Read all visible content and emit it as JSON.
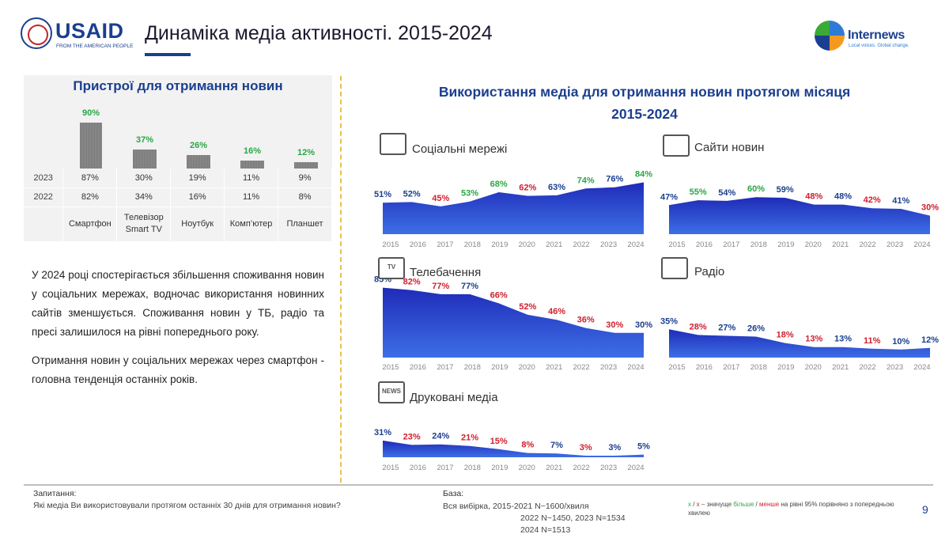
{
  "header": {
    "usaid_name": "USAID",
    "usaid_sub": "FROM THE AMERICAN PEOPLE",
    "page_title": "Динаміка медіа активності. 2015-2024",
    "internews_name": "Internews",
    "internews_tag": "Local voices. Global change."
  },
  "devices": {
    "title": "Пристрої для отримання новин",
    "names": [
      "Смартфон",
      "Телевізор Smart TV",
      "Ноутбук",
      "Комп’ютер",
      "Планшет"
    ],
    "values_2024": [
      90,
      37,
      26,
      16,
      12
    ],
    "labels_2024": [
      "90%",
      "37%",
      "26%",
      "16%",
      "12%"
    ],
    "rows": [
      {
        "year": "2023",
        "values": [
          "87%",
          "30%",
          "19%",
          "11%",
          "9%"
        ]
      },
      {
        "year": "2022",
        "values": [
          "82%",
          "34%",
          "16%",
          "11%",
          "8%"
        ]
      }
    ]
  },
  "body_text": {
    "p1": "У 2024 році спостерігається збільшення споживання новин у соціальних мережах, водночас використання новинних сайтів зменшується. Споживання новин у ТБ, радіо та пресі залишилося на рівні попереднього року.",
    "p2": "Отримання новин у соціальних мережах через смартфон - головна тенденція останніх років."
  },
  "right_title": {
    "line1": "Використання медіа для отримання новин протягом місяця",
    "line2": "2015-2024"
  },
  "chart_data": [
    {
      "type": "area",
      "title": "Соціальні мережі",
      "icon": "social-media-icon",
      "x": [
        "2015",
        "2016",
        "2017",
        "2018",
        "2019",
        "2020",
        "2021",
        "2022",
        "2023",
        "2024"
      ],
      "values": [
        51,
        52,
        45,
        53,
        68,
        62,
        63,
        74,
        76,
        84
      ],
      "label_colors": [
        "#1b3f8f",
        "#1b3f8f",
        "#d0202f",
        "#2aa646",
        "#2aa646",
        "#d0202f",
        "#1b3f8f",
        "#2aa646",
        "#1b3f8f",
        "#2aa646"
      ]
    },
    {
      "type": "area",
      "title": "Сайти новин",
      "icon": "news-site-icon",
      "x": [
        "2015",
        "2016",
        "2017",
        "2018",
        "2019",
        "2020",
        "2021",
        "2022",
        "2023",
        "2024"
      ],
      "values": [
        47,
        55,
        54,
        60,
        59,
        48,
        48,
        42,
        41,
        30
      ],
      "label_colors": [
        "#1b3f8f",
        "#2aa646",
        "#1b3f8f",
        "#2aa646",
        "#1b3f8f",
        "#d0202f",
        "#1b3f8f",
        "#d0202f",
        "#1b3f8f",
        "#d0202f"
      ]
    },
    {
      "type": "area",
      "title": "Телебачення",
      "icon": "tv-icon",
      "icon_text": "TV",
      "x": [
        "2015",
        "2016",
        "2017",
        "2018",
        "2019",
        "2020",
        "2021",
        "2022",
        "2023",
        "2024"
      ],
      "values": [
        85,
        82,
        77,
        77,
        66,
        52,
        46,
        36,
        30,
        30
      ],
      "label_colors": [
        "#1b3f8f",
        "#d0202f",
        "#d0202f",
        "#1b3f8f",
        "#d0202f",
        "#d0202f",
        "#d0202f",
        "#d0202f",
        "#d0202f",
        "#1b3f8f"
      ]
    },
    {
      "type": "area",
      "title": "Радіо",
      "icon": "radio-icon",
      "x": [
        "2015",
        "2016",
        "2017",
        "2018",
        "2019",
        "2020",
        "2021",
        "2022",
        "2023",
        "2024"
      ],
      "values": [
        35,
        28,
        27,
        26,
        18,
        13,
        13,
        11,
        10,
        12
      ],
      "label_colors": [
        "#1b3f8f",
        "#d0202f",
        "#1b3f8f",
        "#1b3f8f",
        "#d0202f",
        "#d0202f",
        "#1b3f8f",
        "#d0202f",
        "#1b3f8f",
        "#1b3f8f"
      ]
    },
    {
      "type": "area",
      "title": "Друковані медіа",
      "icon": "newspaper-icon",
      "icon_text": "NEWS",
      "x": [
        "2015",
        "2016",
        "2017",
        "2018",
        "2019",
        "2020",
        "2021",
        "2022",
        "2023",
        "2024"
      ],
      "values": [
        31,
        23,
        24,
        21,
        15,
        8,
        7,
        3,
        3,
        5
      ],
      "label_colors": [
        "#1b3f8f",
        "#d0202f",
        "#1b3f8f",
        "#d0202f",
        "#d0202f",
        "#d0202f",
        "#1b3f8f",
        "#d0202f",
        "#1b3f8f",
        "#1b3f8f"
      ]
    }
  ],
  "footer": {
    "question_label": "Запитання:",
    "question_text": "Які медіа Ви використовували протягом останніх 30 днів для отримання новин?",
    "base_label": "База:",
    "base_line1": "Вся вибірка, 2015-2021   N~1600/хвиля",
    "base_line2": "2022  N~1450, 2023  N=1534",
    "base_line3": "2024  N=1513",
    "note_x": "x",
    "note_sep": " / ",
    "note_x2": "x",
    "note_mid": " – значуще ",
    "note_more": "більше",
    "note_slash": " / ",
    "note_less": "менше",
    "note_rest": " на рівні 95% порівняно з попередньою хвилею",
    "page_number": "9"
  }
}
